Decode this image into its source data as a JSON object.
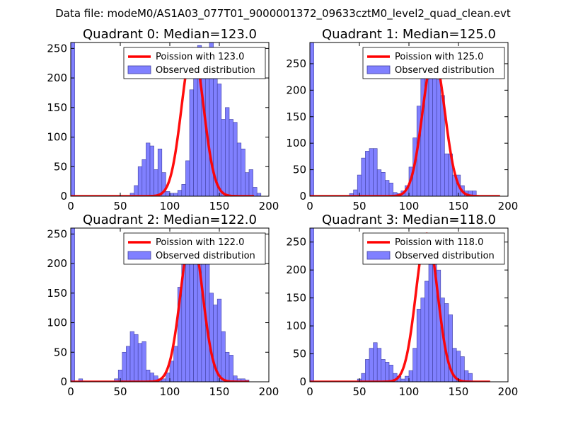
{
  "figure": {
    "suptitle": "Data file: modeM0/AS1A03_077T01_9000001372_09633cztM0_level2_quad_clean.evt"
  },
  "colors": {
    "poisson": "#ff0000",
    "observed_fill": "#8080ff",
    "observed_edge": "#4040a0",
    "axes": "#000000"
  },
  "chart_data": [
    {
      "type": "histogram+line",
      "title": "Quadrant 0: Median=123.0",
      "xlim": [
        0,
        200
      ],
      "ylim": [
        0,
        260
      ],
      "xticks": [
        0,
        50,
        100,
        150,
        200
      ],
      "yticks": [
        0,
        50,
        100,
        150,
        200,
        250
      ],
      "legend_location": "top-right",
      "line_label": "Poission with 123.0",
      "hist_label": "Observed distribution",
      "poisson_mean": 123.0,
      "poisson_peak": 250,
      "poisson_xrange": [
        0,
        185
      ],
      "bin_width": 4,
      "hist_start": 0,
      "hist_counts": [
        260,
        0,
        0,
        0,
        0,
        0,
        0,
        0,
        0,
        0,
        0,
        0,
        0,
        0,
        0,
        5,
        18,
        50,
        62,
        90,
        85,
        45,
        80,
        40,
        8,
        5,
        5,
        10,
        20,
        60,
        180,
        200,
        255,
        250,
        230,
        260,
        240,
        190,
        130,
        150,
        130,
        125,
        90,
        80,
        40,
        45,
        15,
        5,
        0,
        0
      ]
    },
    {
      "type": "histogram+line",
      "title": "Quadrant 1: Median=125.0",
      "xlim": [
        0,
        200
      ],
      "ylim": [
        0,
        290
      ],
      "xticks": [
        0,
        50,
        100,
        150,
        200
      ],
      "yticks": [
        0,
        50,
        100,
        150,
        200,
        250
      ],
      "legend_location": "top-right",
      "line_label": "Poission with 125.0",
      "hist_label": "Observed distribution",
      "poisson_mean": 125.0,
      "poisson_peak": 265,
      "poisson_xrange": [
        0,
        192
      ],
      "bin_width": 4,
      "hist_start": 0,
      "hist_counts": [
        290,
        0,
        0,
        0,
        0,
        0,
        0,
        0,
        0,
        0,
        5,
        12,
        40,
        72,
        85,
        90,
        90,
        50,
        45,
        30,
        25,
        7,
        5,
        10,
        20,
        55,
        110,
        170,
        225,
        260,
        275,
        250,
        220,
        190,
        80,
        80,
        40,
        40,
        20,
        10,
        10,
        10,
        0,
        0,
        0,
        0,
        0,
        0,
        0,
        0
      ]
    },
    {
      "type": "histogram+line",
      "title": "Quadrant 2: Median=122.0",
      "xlim": [
        0,
        200
      ],
      "ylim": [
        0,
        260
      ],
      "xticks": [
        0,
        50,
        100,
        150,
        200
      ],
      "yticks": [
        0,
        50,
        100,
        150,
        200,
        250
      ],
      "legend_location": "top-right",
      "line_label": "Poission with 122.0",
      "hist_label": "Observed distribution",
      "poisson_mean": 122.0,
      "poisson_peak": 250,
      "poisson_xrange": [
        0,
        180
      ],
      "bin_width": 4,
      "hist_start": 0,
      "hist_counts": [
        260,
        0,
        5,
        0,
        0,
        0,
        0,
        0,
        0,
        0,
        0,
        5,
        20,
        50,
        60,
        85,
        80,
        65,
        68,
        20,
        15,
        10,
        5,
        5,
        15,
        35,
        60,
        160,
        200,
        225,
        250,
        230,
        220,
        240,
        220,
        150,
        130,
        140,
        85,
        50,
        45,
        10,
        5,
        5,
        3,
        0,
        0,
        0,
        0,
        0
      ]
    },
    {
      "type": "histogram+line",
      "title": "Quadrant 3: Median=118.0",
      "xlim": [
        0,
        200
      ],
      "ylim": [
        0,
        275
      ],
      "xticks": [
        0,
        50,
        100,
        150,
        200
      ],
      "yticks": [
        0,
        50,
        100,
        150,
        200,
        250
      ],
      "legend_location": "top-right",
      "line_label": "Poission with 118.0",
      "hist_label": "Observed distribution",
      "poisson_mean": 118.0,
      "poisson_peak": 265,
      "poisson_xrange": [
        0,
        182
      ],
      "bin_width": 4,
      "hist_start": 0,
      "hist_counts": [
        275,
        0,
        0,
        0,
        0,
        0,
        0,
        0,
        0,
        0,
        0,
        0,
        5,
        15,
        40,
        60,
        70,
        60,
        40,
        35,
        30,
        15,
        10,
        5,
        10,
        20,
        60,
        130,
        150,
        180,
        230,
        240,
        200,
        150,
        140,
        120,
        60,
        55,
        45,
        20,
        15,
        0,
        0,
        0,
        0,
        0,
        0,
        0,
        0,
        0
      ]
    }
  ]
}
